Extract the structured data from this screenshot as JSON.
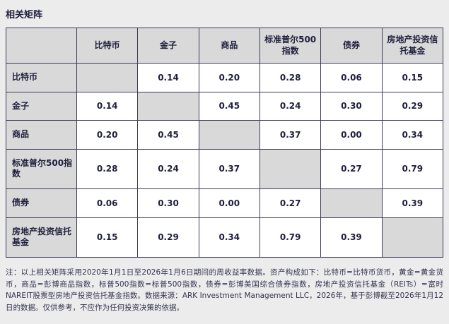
{
  "page": {
    "title": "相关矩阵",
    "background_color": "#ececec",
    "accent_color": "#1f1f3d",
    "header_cell_color": "#d9d9d9",
    "border_color": "#3c3c5a"
  },
  "note": "注：以上相关矩阵采用2020年1月1日至2026年1月6日期间的周收益率数据。资产构成如下：比特币=比特币货币，黄金=黄金货币，商品=彭博商品指数，标普500指数=标普500指数，债券=彭博美国综合债券指数，房地产投资信托基金（REITs）=富时NAREIT股票型房地产投资信托基金指数。数据来源：ARK Investment Management LLC，2026年，基于彭博截至2026年1月12日的数据。仅供参考，不应作为任何投资决策的依据。",
  "chart_data": {
    "type": "table",
    "title": "相关矩阵",
    "col_headers": [
      "",
      "比特币",
      "金子",
      "商品",
      "标准普尔500指数",
      "债券",
      "房地产投资信托基金"
    ],
    "rows": [
      {
        "label": "比特币",
        "values": [
          "",
          "0.14",
          "0.20",
          "0.28",
          "0.06",
          "0.15"
        ]
      },
      {
        "label": "金子",
        "values": [
          "0.14",
          "",
          "0.45",
          "0.24",
          "0.30",
          "0.29"
        ]
      },
      {
        "label": "商品",
        "values": [
          "0.20",
          "0.45",
          "",
          "0.37",
          "0.00",
          "0.34"
        ]
      },
      {
        "label": "标准普尔500指数",
        "values": [
          "0.28",
          "0.24",
          "0.37",
          "",
          "0.27",
          "0.79"
        ]
      },
      {
        "label": "债券",
        "values": [
          "0.06",
          "0.30",
          "0.00",
          "0.27",
          "",
          "0.39"
        ]
      },
      {
        "label": "房地产投资信托基金",
        "values": [
          "0.15",
          "0.29",
          "0.34",
          "0.79",
          "0.39",
          ""
        ]
      }
    ]
  }
}
